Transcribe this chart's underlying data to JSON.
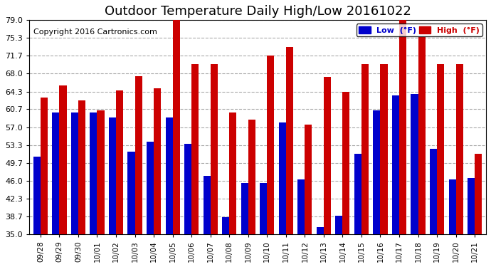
{
  "title": "Outdoor Temperature Daily High/Low 20161022",
  "copyright": "Copyright 2016 Cartronics.com",
  "categories": [
    "09/28",
    "09/29",
    "09/30",
    "10/01",
    "10/02",
    "10/03",
    "10/04",
    "10/05",
    "10/06",
    "10/07",
    "10/08",
    "10/09",
    "10/10",
    "10/11",
    "10/12",
    "10/13",
    "10/14",
    "10/15",
    "10/16",
    "10/17",
    "10/18",
    "10/19",
    "10/20",
    "10/21"
  ],
  "low_values": [
    51.0,
    60.0,
    60.0,
    60.0,
    59.0,
    52.0,
    54.0,
    59.0,
    53.5,
    47.0,
    38.5,
    45.5,
    45.5,
    58.0,
    46.2,
    36.5,
    38.8,
    51.5,
    60.5,
    63.5,
    63.8,
    52.5,
    46.2,
    46.5
  ],
  "high_values": [
    63.0,
    65.5,
    62.5,
    60.5,
    64.5,
    67.5,
    65.0,
    79.0,
    70.0,
    70.0,
    60.0,
    58.5,
    71.7,
    73.5,
    57.5,
    67.3,
    64.3,
    70.0,
    70.0,
    79.5,
    75.5,
    70.0,
    70.0,
    51.5
  ],
  "low_color": "#0000cc",
  "high_color": "#cc0000",
  "bg_color": "#ffffff",
  "plot_bg_color": "#ffffff",
  "grid_color": "#aaaaaa",
  "yticks": [
    35.0,
    38.7,
    42.3,
    46.0,
    49.7,
    53.3,
    57.0,
    60.7,
    64.3,
    68.0,
    71.7,
    75.3,
    79.0
  ],
  "ylim": [
    35.0,
    79.0
  ],
  "title_fontsize": 13,
  "copyright_fontsize": 8,
  "legend_low_label": "Low  (°F)",
  "legend_high_label": "High  (°F)"
}
